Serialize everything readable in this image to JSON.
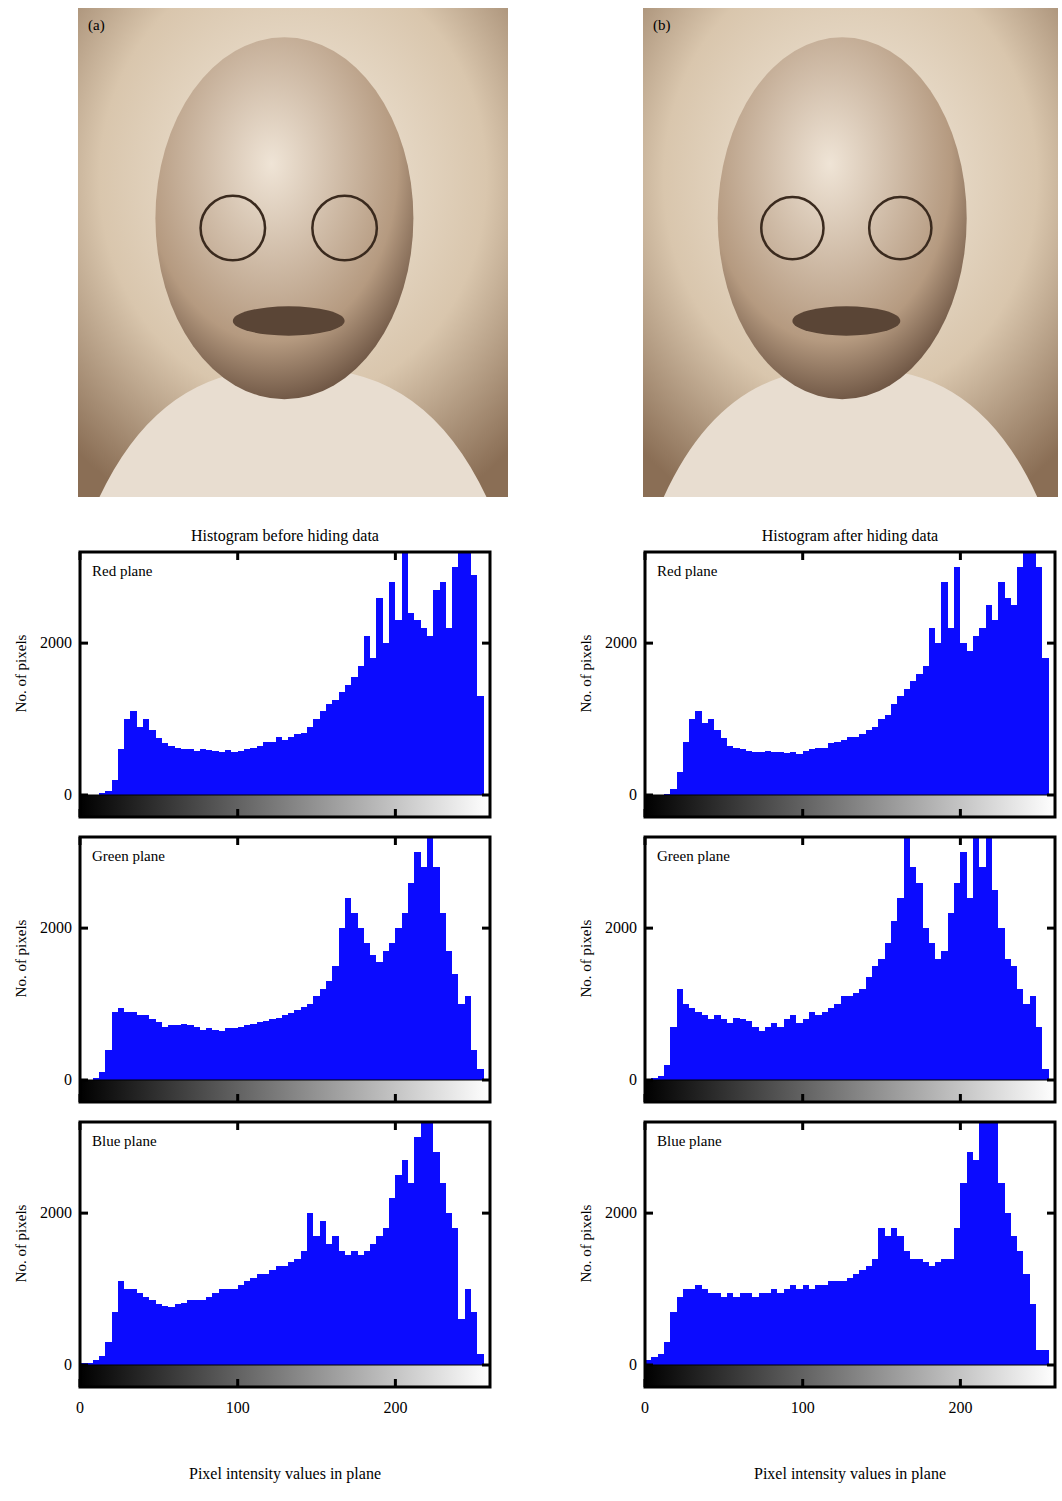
{
  "figure": {
    "columns": [
      {
        "label": "(a)",
        "title": "Histogram before hiding data"
      },
      {
        "label": "(b)",
        "title": "Histogram after hiding data"
      }
    ]
  },
  "chart_data": [
    {
      "type": "histogram",
      "title": "Red plane",
      "ylabel": "No. of pixels",
      "color": "#0b0bff",
      "bins": [
        0,
        4,
        8,
        12,
        16,
        20,
        24,
        28,
        32,
        36,
        40,
        44,
        48,
        52,
        56,
        60,
        64,
        68,
        72,
        76,
        80,
        84,
        88,
        92,
        96,
        100,
        104,
        108,
        112,
        116,
        120,
        124,
        128,
        132,
        136,
        140,
        144,
        148,
        152,
        156,
        160,
        164,
        168,
        172,
        176,
        180,
        184,
        188,
        192,
        196,
        200,
        204,
        208,
        212,
        216,
        220,
        224,
        228,
        232,
        236,
        240,
        244,
        248,
        252,
        256
      ],
      "values": [
        0,
        0,
        0,
        20,
        50,
        200,
        600,
        1000,
        1100,
        900,
        1000,
        850,
        750,
        680,
        650,
        620,
        600,
        600,
        580,
        600,
        590,
        580,
        560,
        590,
        560,
        580,
        600,
        620,
        650,
        700,
        700,
        760,
        720,
        760,
        800,
        820,
        900,
        1000,
        1100,
        1200,
        1250,
        1350,
        1450,
        1550,
        1700,
        2100,
        1800,
        2600,
        2000,
        2800,
        2300,
        3200,
        2400,
        2300,
        2200,
        2100,
        2700,
        2800,
        2200,
        3000,
        3200,
        3200,
        2900,
        1300
      ],
      "xlim": [
        0,
        260
      ],
      "ylim": [
        0,
        3200
      ],
      "xticks": [
        0,
        100,
        200
      ],
      "yticks": [
        0,
        2000
      ],
      "tick_labels": "y"
    },
    {
      "type": "histogram",
      "title": "Green plane",
      "ylabel": "No. of pixels",
      "color": "#0b0bff",
      "bins": [
        0,
        4,
        8,
        12,
        16,
        20,
        24,
        28,
        32,
        36,
        40,
        44,
        48,
        52,
        56,
        60,
        64,
        68,
        72,
        76,
        80,
        84,
        88,
        92,
        96,
        100,
        104,
        108,
        112,
        116,
        120,
        124,
        128,
        132,
        136,
        140,
        144,
        148,
        152,
        156,
        160,
        164,
        168,
        172,
        176,
        180,
        184,
        188,
        192,
        196,
        200,
        204,
        208,
        212,
        216,
        220,
        224,
        228,
        232,
        236,
        240,
        244,
        248,
        252,
        256
      ],
      "values": [
        0,
        0,
        30,
        100,
        400,
        900,
        950,
        900,
        900,
        850,
        850,
        800,
        760,
        700,
        720,
        720,
        740,
        720,
        700,
        660,
        680,
        660,
        650,
        680,
        680,
        700,
        720,
        740,
        760,
        780,
        800,
        820,
        860,
        880,
        920,
        960,
        1000,
        1100,
        1200,
        1300,
        1500,
        2000,
        2400,
        2200,
        2000,
        1800,
        1650,
        1550,
        1700,
        1800,
        2000,
        2200,
        2600,
        3000,
        2800,
        3200,
        2800,
        2200,
        1700,
        1400,
        1000,
        1100,
        400,
        150
      ],
      "xlim": [
        0,
        260
      ],
      "ylim": [
        0,
        3200
      ],
      "xticks": [
        0,
        100,
        200
      ],
      "yticks": [
        0,
        2000
      ],
      "tick_labels": "y"
    },
    {
      "type": "histogram",
      "title": "Blue plane",
      "ylabel": "No. of pixels",
      "xlabel": "Pixel intensity values in plane",
      "color": "#0b0bff",
      "bins": [
        0,
        4,
        8,
        12,
        16,
        20,
        24,
        28,
        32,
        36,
        40,
        44,
        48,
        52,
        56,
        60,
        64,
        68,
        72,
        76,
        80,
        84,
        88,
        92,
        96,
        100,
        104,
        108,
        112,
        116,
        120,
        124,
        128,
        132,
        136,
        140,
        144,
        148,
        152,
        156,
        160,
        164,
        168,
        172,
        176,
        180,
        184,
        188,
        192,
        196,
        200,
        204,
        208,
        212,
        216,
        220,
        224,
        228,
        232,
        236,
        240,
        244,
        248,
        252,
        256
      ],
      "values": [
        30,
        30,
        60,
        120,
        300,
        700,
        1100,
        1000,
        1000,
        950,
        900,
        850,
        800,
        780,
        760,
        800,
        820,
        850,
        860,
        860,
        900,
        950,
        1000,
        1000,
        1000,
        1050,
        1100,
        1150,
        1200,
        1200,
        1250,
        1300,
        1300,
        1350,
        1400,
        1500,
        2000,
        1700,
        1900,
        1600,
        1700,
        1500,
        1450,
        1500,
        1450,
        1500,
        1600,
        1700,
        1800,
        2200,
        2500,
        2700,
        2400,
        3000,
        3200,
        3200,
        2800,
        2400,
        2000,
        1800,
        600,
        1000,
        700,
        150
      ],
      "xlim": [
        0,
        260
      ],
      "ylim": [
        0,
        3200
      ],
      "xticks": [
        0,
        100,
        200
      ],
      "yticks": [
        0,
        2000
      ],
      "tick_labels": true
    },
    {
      "type": "histogram",
      "title": "Red plane",
      "ylabel": "No. of pixels",
      "color": "#0b0bff",
      "bins": [
        0,
        4,
        8,
        12,
        16,
        20,
        24,
        28,
        32,
        36,
        40,
        44,
        48,
        52,
        56,
        60,
        64,
        68,
        72,
        76,
        80,
        84,
        88,
        92,
        96,
        100,
        104,
        108,
        112,
        116,
        120,
        124,
        128,
        132,
        136,
        140,
        144,
        148,
        152,
        156,
        160,
        164,
        168,
        172,
        176,
        180,
        184,
        188,
        192,
        196,
        200,
        204,
        208,
        212,
        216,
        220,
        224,
        228,
        232,
        236,
        240,
        244,
        248,
        252,
        256
      ],
      "values": [
        0,
        0,
        0,
        10,
        80,
        300,
        700,
        1000,
        1100,
        950,
        1000,
        850,
        750,
        650,
        620,
        600,
        580,
        560,
        560,
        580,
        560,
        560,
        550,
        560,
        540,
        580,
        600,
        620,
        620,
        680,
        700,
        720,
        760,
        760,
        800,
        860,
        900,
        1000,
        1050,
        1200,
        1300,
        1400,
        1500,
        1600,
        1700,
        2200,
        2000,
        2800,
        2200,
        3000,
        2000,
        1900,
        2100,
        2200,
        2500,
        2300,
        2800,
        2600,
        2500,
        3000,
        3200,
        3200,
        3000,
        1800
      ],
      "xlim": [
        0,
        260
      ],
      "ylim": [
        0,
        3200
      ],
      "xticks": [
        0,
        100,
        200
      ],
      "yticks": [
        0,
        2000
      ],
      "tick_labels": "y"
    },
    {
      "type": "histogram",
      "title": "Green plane",
      "ylabel": "No. of pixels",
      "color": "#0b0bff",
      "bins": [
        0,
        4,
        8,
        12,
        16,
        20,
        24,
        28,
        32,
        36,
        40,
        44,
        48,
        52,
        56,
        60,
        64,
        68,
        72,
        76,
        80,
        84,
        88,
        92,
        96,
        100,
        104,
        108,
        112,
        116,
        120,
        124,
        128,
        132,
        136,
        140,
        144,
        148,
        152,
        156,
        160,
        164,
        168,
        172,
        176,
        180,
        184,
        188,
        192,
        196,
        200,
        204,
        208,
        212,
        216,
        220,
        224,
        228,
        232,
        236,
        240,
        244,
        248,
        252,
        256
      ],
      "values": [
        0,
        20,
        50,
        200,
        700,
        1200,
        1000,
        950,
        900,
        850,
        800,
        850,
        800,
        750,
        820,
        800,
        780,
        700,
        650,
        700,
        750,
        700,
        800,
        850,
        750,
        800,
        900,
        850,
        900,
        950,
        1000,
        1100,
        1100,
        1150,
        1200,
        1350,
        1500,
        1600,
        1800,
        2100,
        2400,
        3200,
        2800,
        2600,
        2000,
        1800,
        1600,
        1700,
        2200,
        2600,
        3000,
        2400,
        3200,
        2800,
        3200,
        2500,
        2000,
        1600,
        1500,
        1200,
        1000,
        1100,
        700,
        150
      ],
      "xlim": [
        0,
        260
      ],
      "ylim": [
        0,
        3200
      ],
      "xticks": [
        0,
        100,
        200
      ],
      "yticks": [
        0,
        2000
      ],
      "tick_labels": "y"
    },
    {
      "type": "histogram",
      "title": "Blue plane",
      "ylabel": "No. of pixels",
      "xlabel": "Pixel intensity values in plane",
      "color": "#0b0bff",
      "bins": [
        0,
        4,
        8,
        12,
        16,
        20,
        24,
        28,
        32,
        36,
        40,
        44,
        48,
        52,
        56,
        60,
        64,
        68,
        72,
        76,
        80,
        84,
        88,
        92,
        96,
        100,
        104,
        108,
        112,
        116,
        120,
        124,
        128,
        132,
        136,
        140,
        144,
        148,
        152,
        156,
        160,
        164,
        168,
        172,
        176,
        180,
        184,
        188,
        192,
        196,
        200,
        204,
        208,
        212,
        216,
        220,
        224,
        228,
        232,
        236,
        240,
        244,
        248,
        252,
        256
      ],
      "values": [
        60,
        100,
        150,
        300,
        700,
        900,
        1000,
        1000,
        1050,
        1000,
        950,
        950,
        900,
        950,
        900,
        950,
        950,
        900,
        950,
        950,
        1000,
        950,
        1000,
        1050,
        1000,
        1050,
        1000,
        1050,
        1050,
        1100,
        1100,
        1100,
        1150,
        1200,
        1250,
        1300,
        1400,
        1800,
        1700,
        1800,
        1700,
        1500,
        1400,
        1400,
        1350,
        1300,
        1350,
        1400,
        1400,
        1800,
        2400,
        2800,
        2700,
        3200,
        3200,
        3200,
        2400,
        2000,
        1700,
        1500,
        1200,
        800,
        200,
        200
      ],
      "xlim": [
        0,
        260
      ],
      "ylim": [
        0,
        3200
      ],
      "xticks": [
        0,
        100,
        200
      ],
      "yticks": [
        0,
        2000
      ],
      "tick_labels": true
    }
  ]
}
